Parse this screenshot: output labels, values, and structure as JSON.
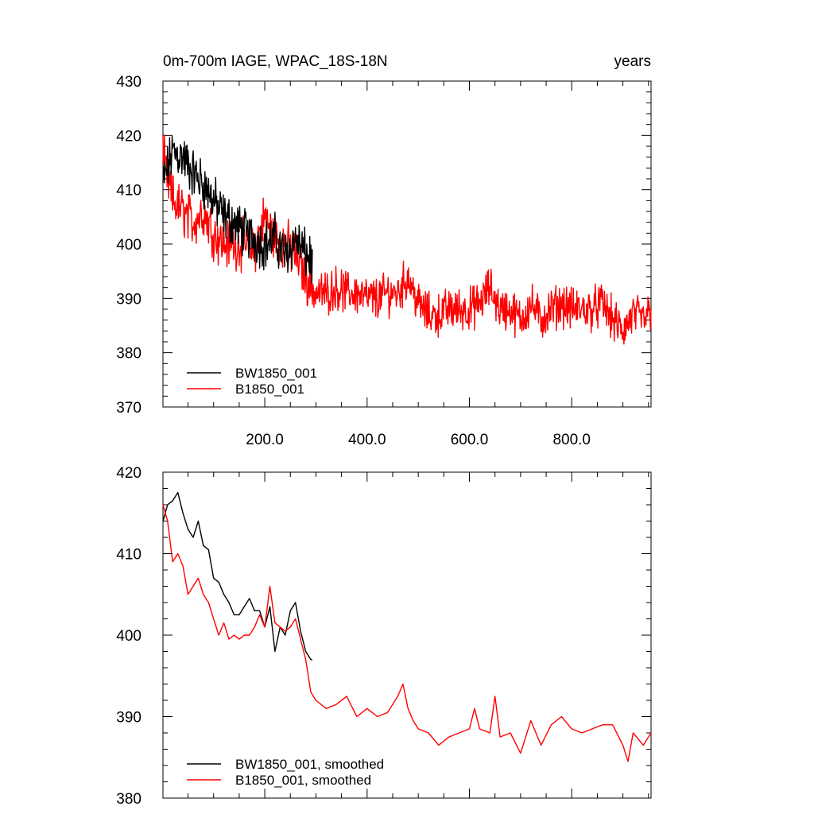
{
  "chart_data": [
    {
      "type": "line",
      "title": "0m-700m IAGE, WPAC_18S-18N",
      "units": "years",
      "xlabel": "",
      "ylabel": "",
      "xlim": [
        1,
        955
      ],
      "ylim": [
        370,
        430
      ],
      "x_ticks": [
        200,
        400,
        600,
        800
      ],
      "x_tick_labels": [
        "200.0",
        "400.0",
        "600.0",
        "800.0"
      ],
      "y_ticks": [
        370,
        380,
        390,
        400,
        410,
        420,
        430
      ],
      "y_tick_labels": [
        "370",
        "380",
        "390",
        "400",
        "410",
        "420",
        "430"
      ],
      "legend_position": "bottom-left",
      "series": [
        {
          "name": "BW1850_001",
          "color": "#000000",
          "x": [
            1,
            20,
            40,
            60,
            80,
            100,
            120,
            140,
            160,
            180,
            200,
            220,
            240,
            260,
            280,
            293
          ],
          "values": [
            411,
            417,
            416,
            413,
            411,
            408,
            405,
            404,
            402,
            401,
            400,
            401,
            398,
            401,
            398,
            397
          ]
        },
        {
          "name": "B1850_001",
          "color": "#ff0000",
          "x": [
            1,
            10,
            20,
            40,
            60,
            80,
            100,
            120,
            140,
            160,
            180,
            200,
            220,
            240,
            260,
            280,
            300,
            320,
            340,
            360,
            380,
            400,
            420,
            440,
            460,
            480,
            500,
            520,
            540,
            560,
            580,
            600,
            620,
            640,
            660,
            680,
            700,
            720,
            740,
            760,
            780,
            800,
            820,
            840,
            860,
            880,
            900,
            920,
            940,
            955
          ],
          "values": [
            416,
            412,
            408,
            406,
            404,
            406,
            402,
            400,
            400,
            400,
            399,
            405,
            401,
            400,
            398,
            394,
            391,
            391,
            392,
            391,
            391,
            390,
            390,
            391,
            391,
            394,
            389,
            387,
            387,
            388,
            388,
            388,
            389,
            392,
            388,
            388,
            386,
            389,
            386,
            388,
            389,
            388,
            388,
            388,
            389,
            386,
            384,
            387,
            386,
            388
          ]
        }
      ]
    },
    {
      "type": "line",
      "title": "",
      "xlabel": "",
      "ylabel": "",
      "xlim": [
        1,
        955
      ],
      "ylim": [
        380,
        420
      ],
      "x_ticks": [
        200,
        400,
        600,
        800
      ],
      "x_tick_labels": [],
      "y_ticks": [
        380,
        390,
        400,
        410,
        420
      ],
      "y_tick_labels": [
        "380",
        "390",
        "400",
        "410",
        "420"
      ],
      "legend_position": "bottom-left",
      "series": [
        {
          "name": "BW1850_001, smoothed",
          "color": "#000000",
          "x": [
            1,
            10,
            20,
            30,
            40,
            50,
            60,
            70,
            80,
            90,
            100,
            110,
            120,
            130,
            140,
            150,
            160,
            170,
            180,
            190,
            200,
            210,
            220,
            230,
            240,
            250,
            260,
            270,
            280,
            290,
            293
          ],
          "values": [
            414,
            416,
            416.5,
            417.5,
            415,
            413,
            412,
            414,
            411,
            410.5,
            407,
            406.5,
            405,
            404,
            402.5,
            402.5,
            403.5,
            404.5,
            403,
            403,
            401,
            403.5,
            398,
            401,
            400,
            403,
            404,
            400.5,
            398,
            397,
            397
          ]
        },
        {
          "name": "B1850_001, smoothed",
          "color": "#ff0000",
          "x": [
            1,
            10,
            20,
            30,
            40,
            50,
            60,
            70,
            80,
            90,
            100,
            110,
            120,
            130,
            140,
            150,
            160,
            170,
            180,
            190,
            200,
            210,
            220,
            230,
            240,
            250,
            260,
            270,
            280,
            290,
            300,
            320,
            340,
            360,
            380,
            400,
            420,
            440,
            460,
            470,
            480,
            490,
            500,
            520,
            540,
            560,
            580,
            600,
            610,
            620,
            640,
            650,
            660,
            680,
            700,
            720,
            740,
            760,
            780,
            800,
            820,
            840,
            860,
            880,
            900,
            910,
            920,
            940,
            955
          ],
          "values": [
            416,
            414,
            409,
            410,
            408.5,
            405,
            406,
            407,
            405,
            404,
            402,
            400,
            401.5,
            399.5,
            400,
            399.5,
            400,
            400,
            401,
            402.5,
            401,
            406,
            401.5,
            401,
            400.5,
            401,
            402,
            399.5,
            397,
            393,
            392,
            391,
            391.5,
            392.5,
            390,
            391,
            390,
            390.5,
            392.5,
            394,
            391,
            389.5,
            388.5,
            388,
            386.5,
            387.5,
            388,
            388.5,
            391,
            388.5,
            388,
            392.5,
            387.5,
            388,
            385.5,
            389.5,
            386.5,
            389,
            390,
            388.5,
            388,
            388.5,
            389,
            389,
            386.5,
            384.5,
            388,
            386.5,
            388
          ]
        }
      ]
    }
  ]
}
